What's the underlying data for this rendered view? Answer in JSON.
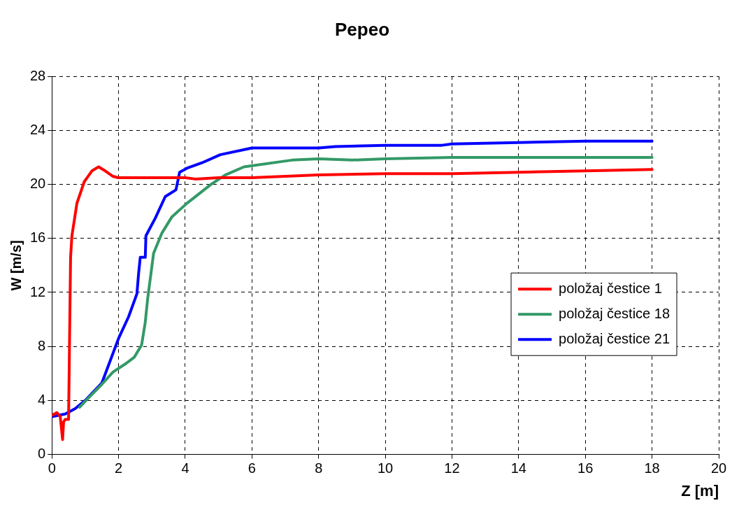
{
  "chart_data": {
    "type": "line",
    "title": "Pepeo",
    "xlabel": "Z [m]",
    "ylabel": "W [m/s]",
    "xlim": [
      0,
      20
    ],
    "xticks": [
      0,
      2,
      4,
      6,
      8,
      10,
      12,
      14,
      16,
      18,
      20
    ],
    "ylim": [
      0,
      28
    ],
    "yticks": [
      0,
      4,
      8,
      12,
      16,
      20,
      24,
      28
    ],
    "grid": true,
    "legend": "right",
    "marker": "none",
    "line_style": "solid",
    "series": [
      {
        "name": "položaj čestice 1",
        "color": "#ff0000",
        "x": [
          0,
          0.15,
          0.25,
          0.3,
          0.32,
          0.35,
          0.4,
          0.5,
          0.54,
          0.56,
          0.6,
          0.75,
          0.97,
          1.2,
          1.4,
          1.6,
          1.83,
          1.98,
          3,
          4,
          4.3,
          5,
          6,
          8,
          10,
          12,
          14,
          16,
          18
        ],
        "values": [
          2.9,
          3.1,
          2.8,
          1.6,
          1.1,
          2.4,
          2.6,
          2.6,
          10.6,
          14.6,
          16.2,
          18.6,
          20.2,
          21.0,
          21.3,
          21.0,
          20.6,
          20.5,
          20.5,
          20.5,
          20.4,
          20.5,
          20.5,
          20.7,
          20.8,
          20.8,
          20.9,
          21.0,
          21.1
        ]
      },
      {
        "name": "položaj čestice 18",
        "color": "#339966",
        "x": [
          0.83,
          1.1,
          1.5,
          1.83,
          2.2,
          2.47,
          2.69,
          2.8,
          2.87,
          3.05,
          3.3,
          3.6,
          4.05,
          4.77,
          5.2,
          5.76,
          7.2,
          8,
          9,
          10,
          12,
          14,
          16,
          18
        ],
        "values": [
          3.5,
          4.2,
          5.2,
          6.1,
          6.7,
          7.2,
          8.1,
          9.8,
          11.5,
          14.9,
          16.4,
          17.6,
          18.6,
          20.0,
          20.7,
          21.3,
          21.8,
          21.9,
          21.8,
          21.9,
          22.0,
          22.0,
          22.0,
          22.0
        ]
      },
      {
        "name": "položaj čestice 21",
        "color": "#0000ff",
        "x": [
          0,
          0.4,
          0.7,
          1,
          1.5,
          2,
          2.3,
          2.55,
          2.6,
          2.65,
          2.8,
          2.82,
          3.1,
          3.4,
          3.72,
          3.78,
          3.83,
          4.05,
          4.5,
          5.05,
          6,
          8,
          8.5,
          10,
          11.7,
          12,
          14,
          16,
          18
        ],
        "values": [
          2.8,
          3.0,
          3.4,
          4.0,
          5.3,
          8.6,
          10.2,
          11.9,
          13.4,
          14.6,
          14.6,
          16.2,
          17.5,
          19.1,
          19.6,
          20.3,
          20.9,
          21.2,
          21.6,
          22.2,
          22.7,
          22.7,
          22.8,
          22.9,
          22.9,
          23.0,
          23.1,
          23.2,
          23.2
        ]
      }
    ]
  }
}
